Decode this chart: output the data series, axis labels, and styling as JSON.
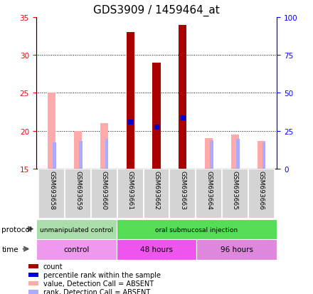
{
  "title": "GDS3909 / 1459464_at",
  "samples": [
    "GSM693658",
    "GSM693659",
    "GSM693660",
    "GSM693661",
    "GSM693662",
    "GSM693663",
    "GSM693664",
    "GSM693665",
    "GSM693666"
  ],
  "ylim": [
    15,
    35
  ],
  "ylim_right": [
    0,
    100
  ],
  "yticks_left": [
    15,
    20,
    25,
    30,
    35
  ],
  "yticks_right": [
    0,
    25,
    50,
    75,
    100
  ],
  "count_values": [
    null,
    null,
    null,
    33.0,
    29.0,
    34.0,
    null,
    null,
    null
  ],
  "value_absent": [
    25.0,
    20.0,
    21.0,
    21.2,
    20.5,
    21.8,
    19.0,
    19.5,
    18.7
  ],
  "rank_absent": [
    18.5,
    18.7,
    18.9,
    null,
    null,
    null,
    18.8,
    18.9,
    18.5
  ],
  "percentile_rank": [
    null,
    null,
    null,
    21.2,
    20.5,
    21.8,
    null,
    null,
    null
  ],
  "count_color": "#aa0000",
  "value_absent_color": "#ffaaaa",
  "rank_absent_color": "#aaaaff",
  "percentile_color": "#0000cc",
  "protocol_groups": [
    {
      "label": "unmanipulated control",
      "start": 0,
      "end": 3,
      "color": "#aaddaa"
    },
    {
      "label": "oral submucosal injection",
      "start": 3,
      "end": 9,
      "color": "#55dd55"
    }
  ],
  "time_groups": [
    {
      "label": "control",
      "start": 0,
      "end": 3,
      "color": "#ee99ee"
    },
    {
      "label": "48 hours",
      "start": 3,
      "end": 6,
      "color": "#ee55ee"
    },
    {
      "label": "96 hours",
      "start": 6,
      "end": 9,
      "color": "#dd88dd"
    }
  ],
  "legend_items": [
    {
      "color": "#aa0000",
      "label": "count"
    },
    {
      "color": "#0000cc",
      "label": "percentile rank within the sample"
    },
    {
      "color": "#ffaaaa",
      "label": "value, Detection Call = ABSENT"
    },
    {
      "color": "#aaaaff",
      "label": "rank, Detection Call = ABSENT"
    }
  ],
  "background_color": "#ffffff",
  "title_fontsize": 11,
  "tick_fontsize": 7.5
}
